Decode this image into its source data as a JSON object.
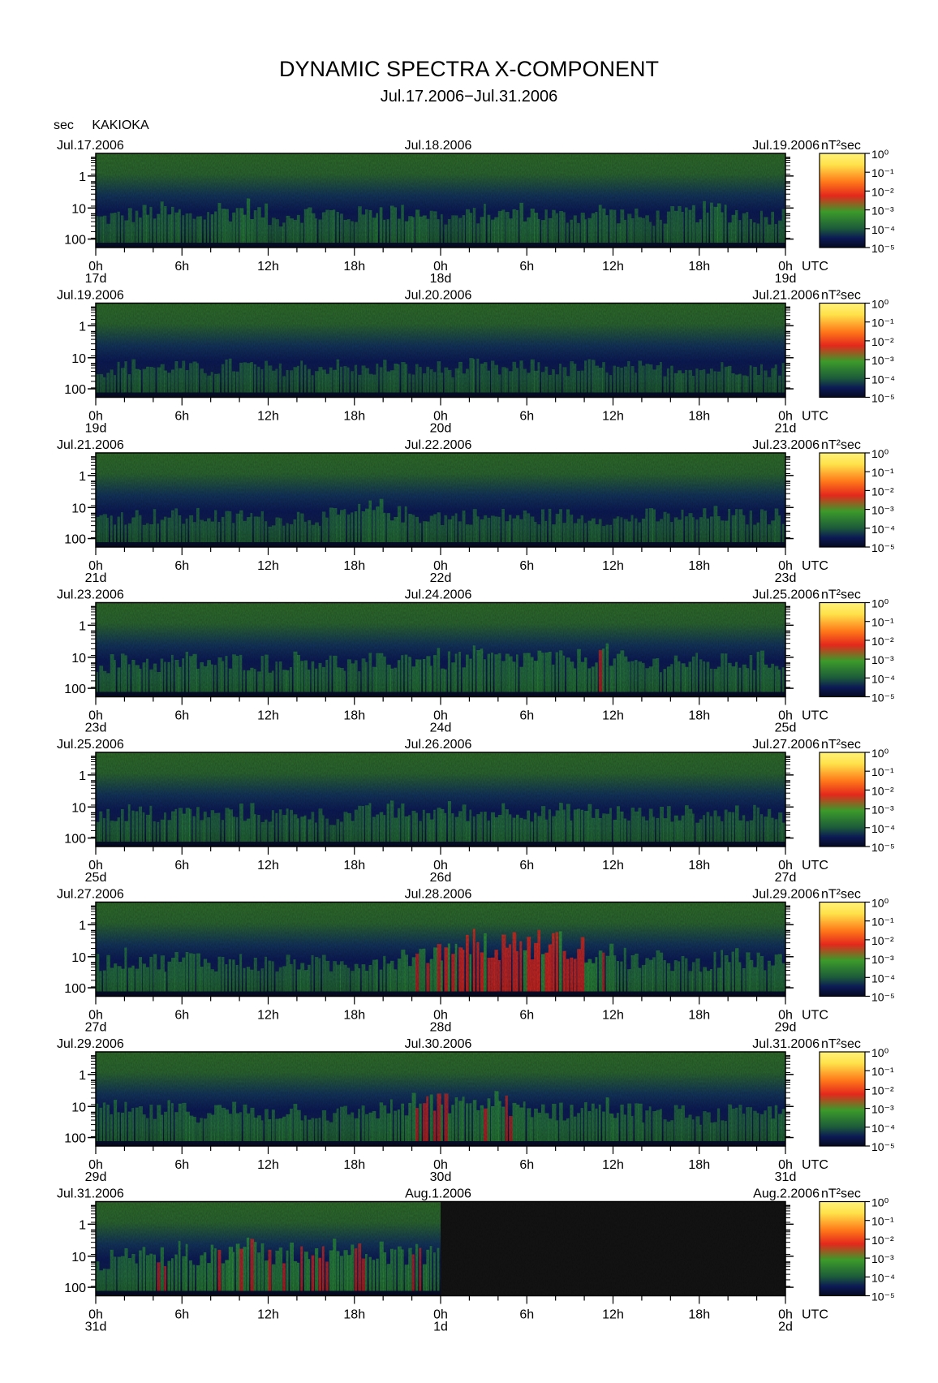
{
  "header": {
    "title": "DYNAMIC SPECTRA X-COMPONENT",
    "subtitle": "Jul.17.2006−Jul.31.2006",
    "ylabel": "sec",
    "station": "KAKIOKA",
    "utc_label": "UTC",
    "unit": "nT²sec"
  },
  "colors": {
    "background": "#0b0f4a",
    "mid": "#1f6e22",
    "high": "#e4281c",
    "peak": "#ffe24a",
    "nodata": "#141414"
  },
  "chart_data": {
    "type": "heatmap",
    "y_axis": {
      "ticks": [
        "1",
        "10",
        "100"
      ],
      "scale": "log",
      "inverted": true
    },
    "hour_ticks": [
      "0h",
      "6h",
      "12h",
      "18h",
      "0h",
      "6h",
      "12h",
      "18h",
      "0h"
    ],
    "colorbar": {
      "labels": [
        "10⁰",
        "10⁻¹",
        "10⁻²",
        "10⁻³",
        "10⁻⁴",
        "10⁻⁵"
      ],
      "scale": "log"
    },
    "panels": [
      {
        "date_left": "Jul.17.2006",
        "date_mid": "Jul.18.2006",
        "date_right": "Jul.19.2006",
        "day_labels": [
          "17d",
          "18d",
          "19d"
        ],
        "activity": [
          0.25,
          0.3,
          0.35,
          0.4,
          0.45,
          0.4,
          0.3,
          0.35,
          0.5,
          0.45,
          0.55,
          0.4,
          0.2,
          0.35,
          0.4,
          0.35,
          0.4,
          0.3,
          0.35,
          0.5,
          0.45,
          0.4,
          0.45,
          0.35,
          0.25,
          0.3,
          0.35,
          0.4,
          0.35,
          0.45,
          0.4,
          0.35,
          0.3,
          0.35,
          0.4,
          0.45,
          0.35,
          0.3,
          0.25,
          0.3,
          0.35,
          0.4,
          0.45,
          0.5,
          0.4,
          0.35,
          0.3,
          0.35
        ],
        "nodata_from": null
      },
      {
        "date_left": "Jul.19.2006",
        "date_mid": "Jul.20.2006",
        "date_right": "Jul.21.2006",
        "day_labels": [
          "19d",
          "20d",
          "21d"
        ],
        "activity": [
          0.2,
          0.25,
          0.3,
          0.3,
          0.25,
          0.3,
          0.25,
          0.2,
          0.25,
          0.3,
          0.3,
          0.25,
          0.2,
          0.25,
          0.3,
          0.25,
          0.3,
          0.25,
          0.2,
          0.25,
          0.3,
          0.25,
          0.2,
          0.25,
          0.2,
          0.25,
          0.3,
          0.25,
          0.2,
          0.25,
          0.3,
          0.25,
          0.2,
          0.25,
          0.3,
          0.25,
          0.2,
          0.25,
          0.2,
          0.25,
          0.3,
          0.25,
          0.2,
          0.25,
          0.3,
          0.25,
          0.2,
          0.25
        ],
        "nodata_from": null
      },
      {
        "date_left": "Jul.21.2006",
        "date_mid": "Jul.22.2006",
        "date_right": "Jul.23.2006",
        "day_labels": [
          "21d",
          "22d",
          "23d"
        ],
        "activity": [
          0.25,
          0.3,
          0.3,
          0.25,
          0.3,
          0.3,
          0.25,
          0.3,
          0.3,
          0.25,
          0.3,
          0.25,
          0.2,
          0.25,
          0.3,
          0.25,
          0.3,
          0.35,
          0.4,
          0.5,
          0.45,
          0.35,
          0.3,
          0.3,
          0.25,
          0.3,
          0.3,
          0.25,
          0.3,
          0.3,
          0.25,
          0.3,
          0.3,
          0.25,
          0.3,
          0.25,
          0.2,
          0.25,
          0.3,
          0.25,
          0.3,
          0.25,
          0.3,
          0.35,
          0.3,
          0.25,
          0.3,
          0.3
        ],
        "nodata_from": null
      },
      {
        "date_left": "Jul.23.2006",
        "date_mid": "Jul.24.2006",
        "date_right": "Jul.25.2006",
        "day_labels": [
          "23d",
          "24d",
          "25d"
        ],
        "activity": [
          0.35,
          0.4,
          0.45,
          0.4,
          0.35,
          0.4,
          0.45,
          0.4,
          0.35,
          0.4,
          0.45,
          0.4,
          0.35,
          0.45,
          0.5,
          0.45,
          0.4,
          0.35,
          0.3,
          0.4,
          0.45,
          0.5,
          0.55,
          0.5,
          0.45,
          0.5,
          0.55,
          0.5,
          0.45,
          0.5,
          0.55,
          0.5,
          0.45,
          0.5,
          0.55,
          0.6,
          0.45,
          0.4,
          0.35,
          0.4,
          0.45,
          0.4,
          0.35,
          0.4,
          0.45,
          0.4,
          0.45,
          0.4
        ],
        "nodata_from": null
      },
      {
        "date_left": "Jul.25.2006",
        "date_mid": "Jul.26.2006",
        "date_right": "Jul.27.2006",
        "day_labels": [
          "25d",
          "26d",
          "27d"
        ],
        "activity": [
          0.3,
          0.35,
          0.4,
          0.35,
          0.3,
          0.35,
          0.4,
          0.35,
          0.3,
          0.35,
          0.4,
          0.35,
          0.3,
          0.35,
          0.4,
          0.3,
          0.25,
          0.3,
          0.35,
          0.4,
          0.45,
          0.4,
          0.35,
          0.4,
          0.45,
          0.4,
          0.35,
          0.4,
          0.45,
          0.5,
          0.4,
          0.35,
          0.4,
          0.45,
          0.4,
          0.35,
          0.4,
          0.35,
          0.3,
          0.35,
          0.4,
          0.35,
          0.3,
          0.35,
          0.4,
          0.35,
          0.3,
          0.35
        ],
        "nodata_from": null
      },
      {
        "date_left": "Jul.27.2006",
        "date_mid": "Jul.28.2006",
        "date_right": "Jul.29.2006",
        "day_labels": [
          "27d",
          "28d",
          "29d"
        ],
        "activity": [
          0.4,
          0.45,
          0.5,
          0.45,
          0.4,
          0.45,
          0.5,
          0.45,
          0.4,
          0.45,
          0.4,
          0.35,
          0.3,
          0.35,
          0.4,
          0.35,
          0.3,
          0.35,
          0.4,
          0.45,
          0.5,
          0.55,
          0.6,
          0.7,
          0.8,
          0.85,
          0.9,
          0.85,
          0.8,
          0.85,
          0.9,
          0.95,
          0.9,
          0.85,
          0.75,
          0.6,
          0.5,
          0.45,
          0.4,
          0.45,
          0.4,
          0.35,
          0.4,
          0.45,
          0.5,
          0.45,
          0.4,
          0.45
        ],
        "nodata_from": null
      },
      {
        "date_left": "Jul.29.2006",
        "date_mid": "Jul.30.2006",
        "date_right": "Jul.31.2006",
        "day_labels": [
          "29d",
          "30d",
          "31d"
        ],
        "activity": [
          0.4,
          0.45,
          0.4,
          0.35,
          0.4,
          0.45,
          0.4,
          0.35,
          0.4,
          0.45,
          0.4,
          0.35,
          0.4,
          0.45,
          0.4,
          0.35,
          0.3,
          0.35,
          0.4,
          0.45,
          0.5,
          0.55,
          0.6,
          0.65,
          0.6,
          0.55,
          0.6,
          0.65,
          0.6,
          0.55,
          0.5,
          0.45,
          0.4,
          0.45,
          0.5,
          0.55,
          0.45,
          0.4,
          0.35,
          0.3,
          0.35,
          0.3,
          0.25,
          0.3,
          0.35,
          0.3,
          0.35,
          0.4
        ],
        "nodata_from": null
      },
      {
        "date_left": "Jul.31.2006",
        "date_mid": "Aug.1.2006",
        "date_right": "Aug.2.2006",
        "day_labels": [
          "31d",
          "1d",
          "2d"
        ],
        "activity": [
          0.4,
          0.45,
          0.5,
          0.55,
          0.6,
          0.65,
          0.6,
          0.65,
          0.7,
          0.75,
          0.7,
          0.65,
          0.6,
          0.65,
          0.7,
          0.75,
          0.7,
          0.65,
          0.6,
          0.65,
          0.6,
          0.55,
          0.6,
          0.55,
          0,
          0,
          0,
          0,
          0,
          0,
          0,
          0,
          0,
          0,
          0,
          0,
          0,
          0,
          0,
          0,
          0,
          0,
          0,
          0,
          0,
          0,
          0,
          0
        ],
        "nodata_from": 1.0
      }
    ]
  }
}
